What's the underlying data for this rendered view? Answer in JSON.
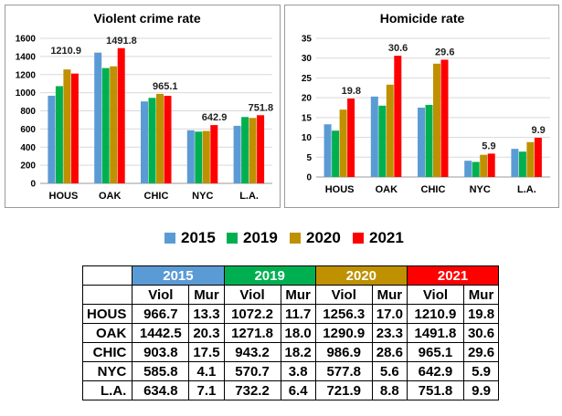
{
  "colors": {
    "2015": "#5B9BD5",
    "2019": "#00B050",
    "2020": "#BF9000",
    "2021": "#FF0000"
  },
  "legend": [
    "2015",
    "2019",
    "2020",
    "2021"
  ],
  "chart_data": [
    {
      "type": "bar",
      "title": "Violent crime rate",
      "categories": [
        "HOUS",
        "OAK",
        "CHIC",
        "NYC",
        "L.A."
      ],
      "ylim": [
        0,
        1600
      ],
      "yticks": [
        0,
        200,
        400,
        600,
        800,
        1000,
        1200,
        1400,
        1600
      ],
      "grid": true,
      "series": [
        {
          "name": "2015",
          "values": [
            966.7,
            1442.5,
            903.8,
            585.8,
            634.8
          ]
        },
        {
          "name": "2019",
          "values": [
            1072.2,
            1271.8,
            943.2,
            570.7,
            732.2
          ]
        },
        {
          "name": "2020",
          "values": [
            1256.3,
            1290.9,
            986.9,
            577.8,
            721.9
          ]
        },
        {
          "name": "2021",
          "values": [
            1210.9,
            1491.8,
            965.1,
            642.9,
            751.8
          ]
        }
      ],
      "data_labels": [
        "1210.9",
        "1491.8",
        "965.1",
        "642.9",
        "751.8"
      ]
    },
    {
      "type": "bar",
      "title": "Homicide rate",
      "categories": [
        "HOUS",
        "OAK",
        "CHIC",
        "NYC",
        "L.A."
      ],
      "ylim": [
        0,
        35
      ],
      "yticks": [
        0,
        5,
        10,
        15,
        20,
        25,
        30,
        35
      ],
      "grid": true,
      "series": [
        {
          "name": "2015",
          "values": [
            13.3,
            20.3,
            17.5,
            4.1,
            7.1
          ]
        },
        {
          "name": "2019",
          "values": [
            11.7,
            18.0,
            18.2,
            3.8,
            6.4
          ]
        },
        {
          "name": "2020",
          "values": [
            17.0,
            23.3,
            28.6,
            5.6,
            8.8
          ]
        },
        {
          "name": "2021",
          "values": [
            19.8,
            30.6,
            29.6,
            5.9,
            9.9
          ]
        }
      ],
      "data_labels": [
        "19.8",
        "30.6",
        "29.6",
        "5.9",
        "9.9"
      ]
    }
  ],
  "table": {
    "years": [
      "2015",
      "2019",
      "2020",
      "2021"
    ],
    "subheaders": [
      "Viol",
      "Mur"
    ],
    "rows": [
      {
        "city": "HOUS",
        "values": [
          "966.7",
          "13.3",
          "1072.2",
          "11.7",
          "1256.3",
          "17.0",
          "1210.9",
          "19.8"
        ]
      },
      {
        "city": "OAK",
        "values": [
          "1442.5",
          "20.3",
          "1271.8",
          "18.0",
          "1290.9",
          "23.3",
          "1491.8",
          "30.6"
        ]
      },
      {
        "city": "CHIC",
        "values": [
          "903.8",
          "17.5",
          "943.2",
          "18.2",
          "986.9",
          "28.6",
          "965.1",
          "29.6"
        ]
      },
      {
        "city": "NYC",
        "values": [
          "585.8",
          "4.1",
          "570.7",
          "3.8",
          "577.8",
          "5.6",
          "642.9",
          "5.9"
        ]
      },
      {
        "city": "L.A.",
        "values": [
          "634.8",
          "7.1",
          "732.2",
          "6.4",
          "721.9",
          "8.8",
          "751.8",
          "9.9"
        ]
      }
    ]
  }
}
